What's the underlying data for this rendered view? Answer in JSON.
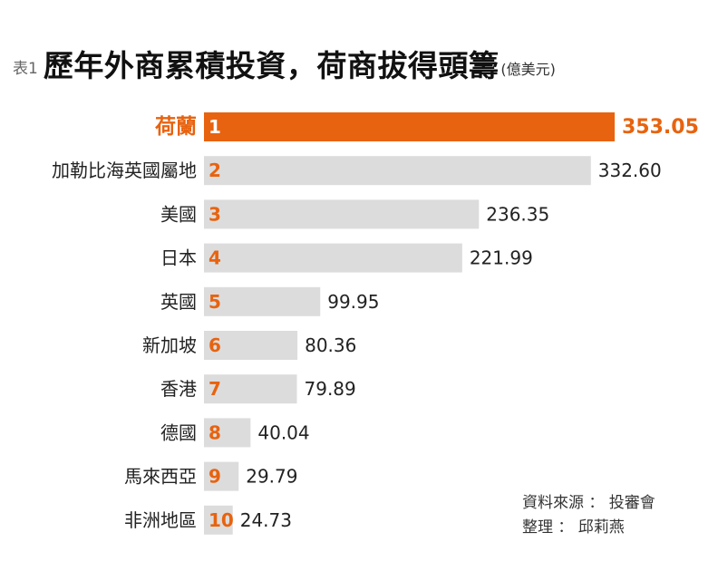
{
  "title": {
    "tag": "表1",
    "main": "歷年外商累積投資，荷商拔得頭籌",
    "unit": "(億美元)"
  },
  "colors": {
    "highlight": "#e8630f",
    "bar": "#dcdcdc",
    "label": "#222222"
  },
  "chart_data": {
    "type": "bar",
    "orientation": "horizontal",
    "title": "歷年外商累積投資，荷商拔得頭籌",
    "unit": "(億美元)",
    "categories": [
      "荷蘭",
      "加勒比海英國屬地",
      "美國",
      "日本",
      "英國",
      "新加坡",
      "香港",
      "德國",
      "馬來西亞",
      "非洲地區"
    ],
    "ranks": [
      "1",
      "2",
      "3",
      "4",
      "5",
      "6",
      "7",
      "8",
      "9",
      "10"
    ],
    "values": [
      353.05,
      332.6,
      236.35,
      221.99,
      99.95,
      80.36,
      79.89,
      40.04,
      29.79,
      24.73
    ],
    "value_labels": [
      "353.05",
      "332.60",
      "236.35",
      "221.99",
      "99.95",
      "80.36",
      "79.89",
      "40.04",
      "29.79",
      "24.73"
    ],
    "highlight_index": 0,
    "grid": false,
    "legend": "none"
  },
  "source": {
    "line1": "資料來源 ： 投審會",
    "line2": "整理 ： 邱莉燕"
  }
}
